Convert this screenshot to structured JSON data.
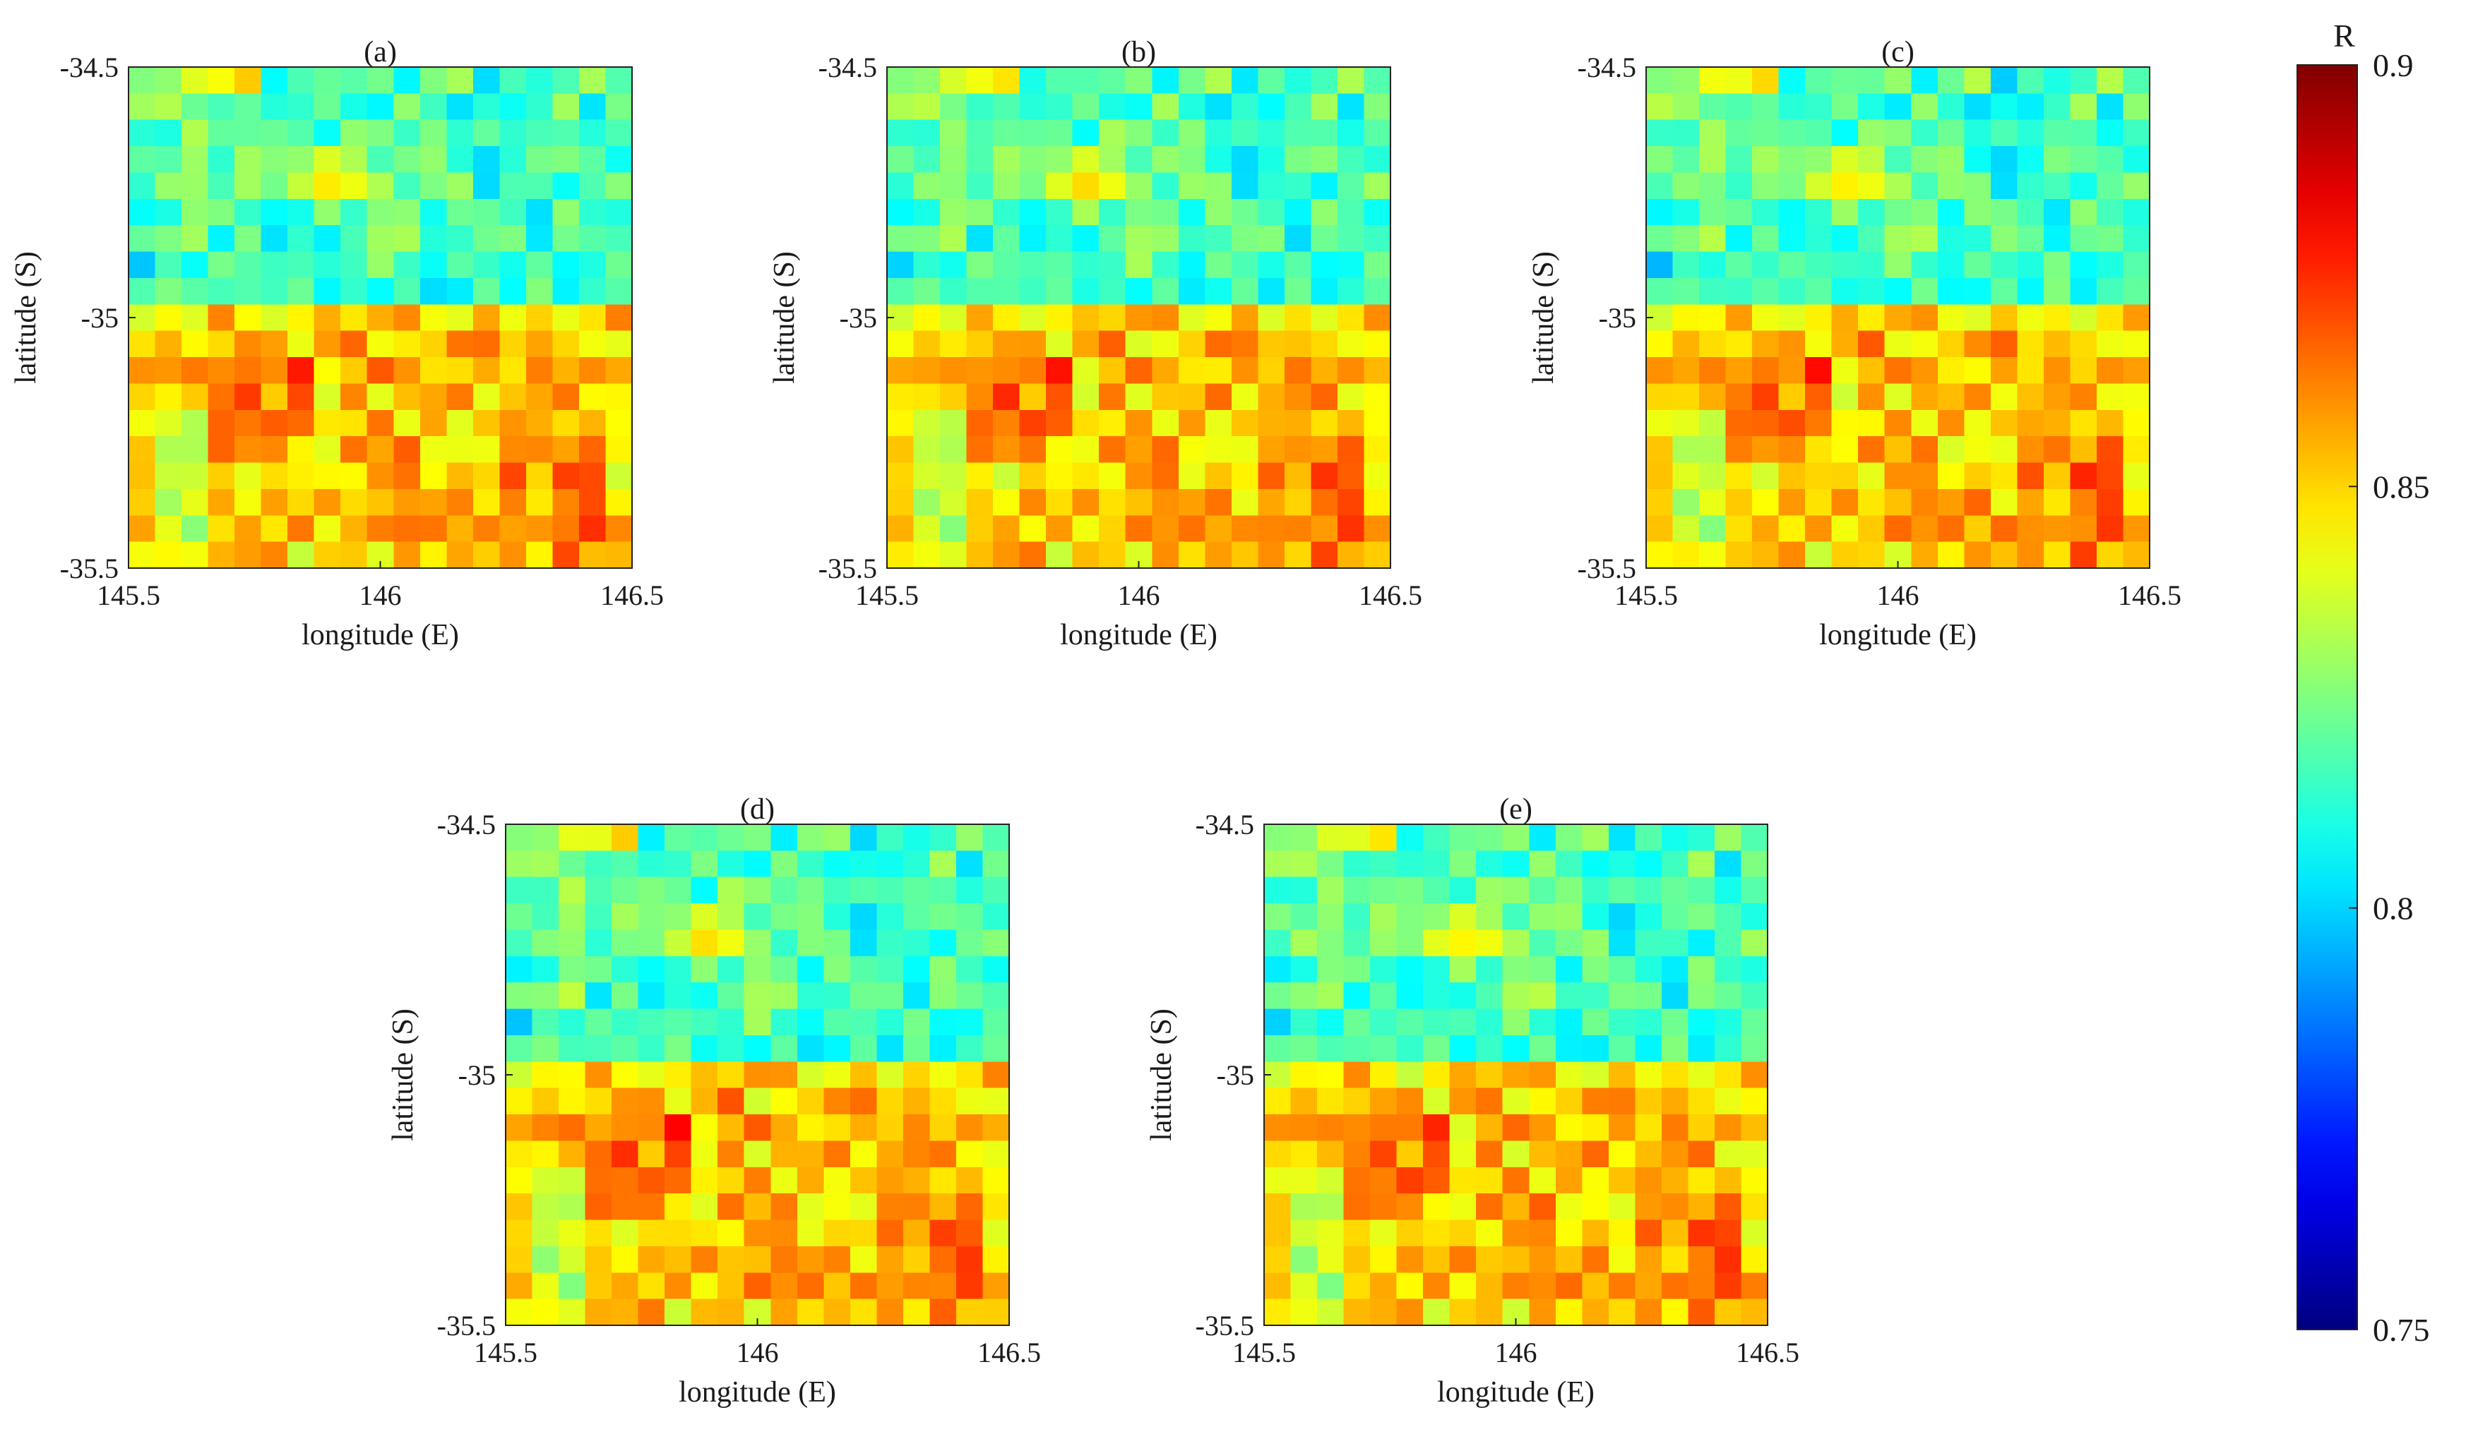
{
  "figure": {
    "colorbar": {
      "label": "R",
      "ticks": [
        "0.9",
        "0.85",
        "0.8",
        "0.75"
      ],
      "tick_values": [
        0.9,
        0.85,
        0.8,
        0.75
      ],
      "range": [
        0.75,
        0.9
      ],
      "colormap": "jet"
    }
  },
  "chart_data": [
    {
      "type": "heatmap",
      "title": "(a)",
      "xlabel": "longitude (E)",
      "ylabel": "latitude (S)",
      "xticks": [
        "145.5",
        "146",
        "146.5"
      ],
      "yticks": [
        "-34.5",
        "-35",
        "-35.5"
      ],
      "xlim": [
        145.5,
        146.5
      ],
      "ylim": [
        -35.5,
        -34.5
      ],
      "grid": false,
      "rows": 19,
      "cols": 19,
      "pattern": "north half ~0.80-0.83 (cyan/green), south half ~0.84-0.87 (yellow/orange)"
    },
    {
      "type": "heatmap",
      "title": "(b)",
      "xlabel": "longitude (E)",
      "ylabel": "latitude (S)",
      "xticks": [
        "145.5",
        "146",
        "146.5"
      ],
      "yticks": [
        "-34.5",
        "-35",
        "-35.5"
      ],
      "xlim": [
        145.5,
        146.5
      ],
      "ylim": [
        -35.5,
        -34.5
      ],
      "grid": false,
      "rows": 19,
      "cols": 19,
      "pattern": "north half ~0.80-0.83 (cyan/green), south half ~0.84-0.87 (yellow/orange)"
    },
    {
      "type": "heatmap",
      "title": "(c)",
      "xlabel": "longitude (E)",
      "ylabel": "latitude (S)",
      "xticks": [
        "145.5",
        "146",
        "146.5"
      ],
      "yticks": [
        "-34.5",
        "-35",
        "-35.5"
      ],
      "xlim": [
        145.5,
        146.5
      ],
      "ylim": [
        -35.5,
        -34.5
      ],
      "grid": false,
      "rows": 19,
      "cols": 19,
      "pattern": "north half ~0.80-0.83 (cyan/green), south half ~0.84-0.87 (yellow/orange)"
    },
    {
      "type": "heatmap",
      "title": "(d)",
      "xlabel": "longitude (E)",
      "ylabel": "latitude (S)",
      "xticks": [
        "145.5",
        "146",
        "146.5"
      ],
      "yticks": [
        "-34.5",
        "-35",
        "-35.5"
      ],
      "xlim": [
        145.5,
        146.5
      ],
      "ylim": [
        -35.5,
        -34.5
      ],
      "grid": false,
      "rows": 19,
      "cols": 19,
      "pattern": "north half ~0.80-0.83 (cyan/green), south half ~0.84-0.87 (yellow/orange)"
    },
    {
      "type": "heatmap",
      "title": "(e)",
      "xlabel": "longitude (E)",
      "ylabel": "latitude (S)",
      "xticks": [
        "145.5",
        "146",
        "146.5"
      ],
      "yticks": [
        "-34.5",
        "-35",
        "-35.5"
      ],
      "xlim": [
        145.5,
        146.5
      ],
      "ylim": [
        -35.5,
        -34.5
      ],
      "grid": false,
      "rows": 19,
      "cols": 19,
      "pattern": "north half ~0.80-0.83 (cyan/green), south half ~0.84-0.87 (yellow/orange)"
    }
  ]
}
